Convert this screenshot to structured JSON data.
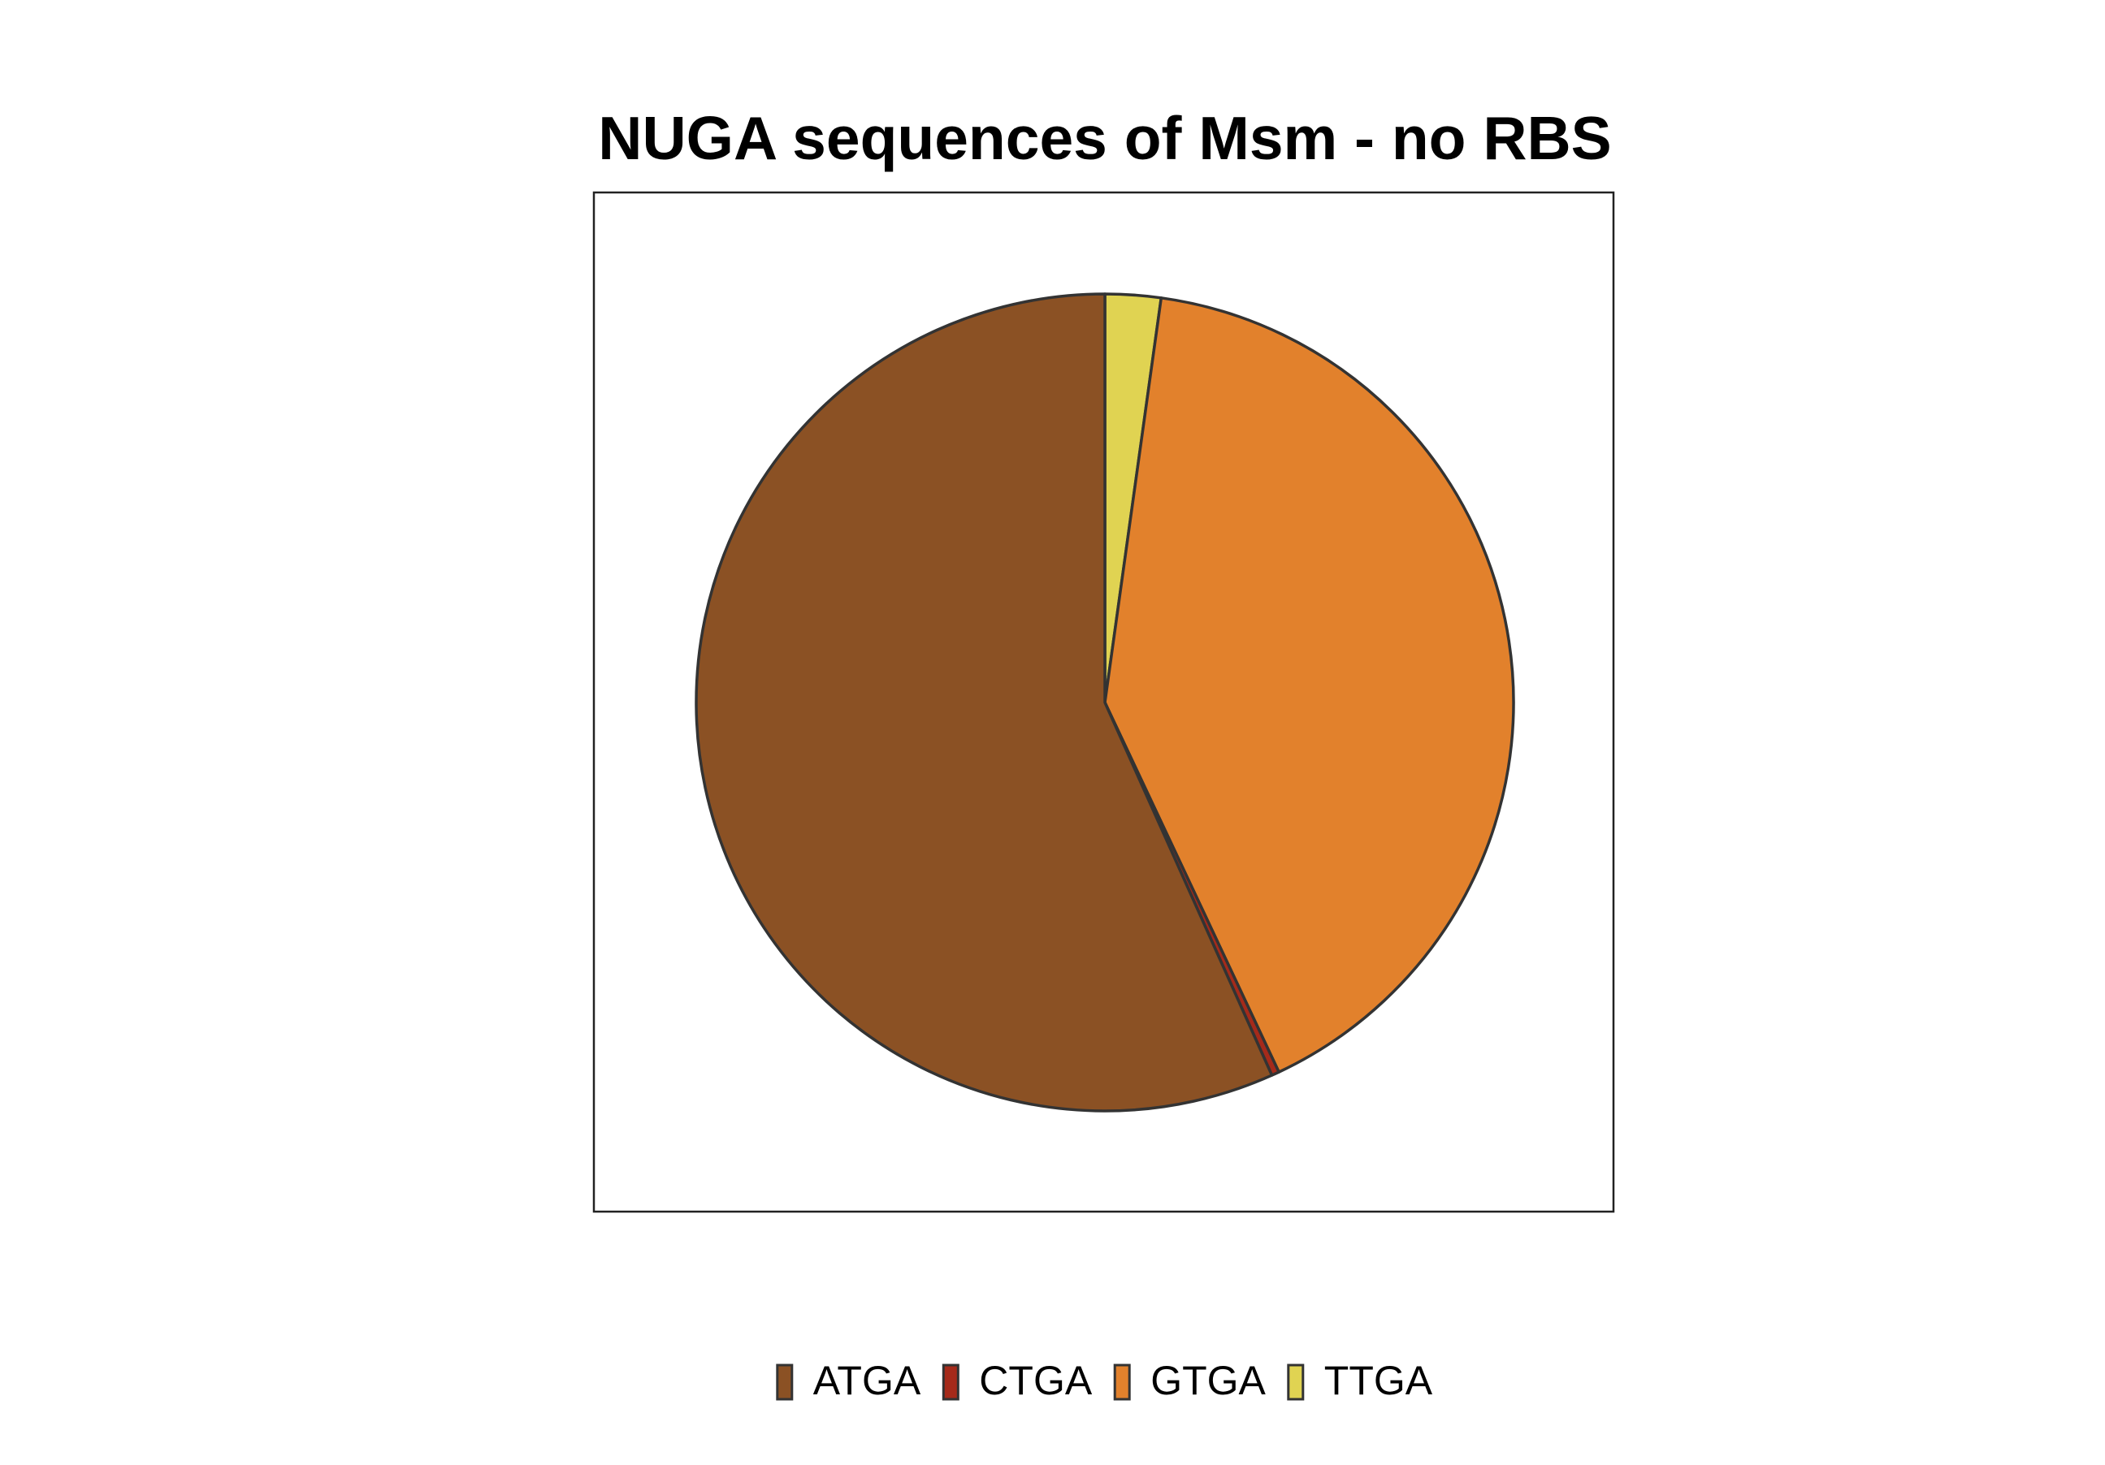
{
  "chart_data": {
    "type": "pie",
    "title": "NUGA sequences of Msm - no RBS",
    "start": "top",
    "direction": "clockwise",
    "slices": [
      {
        "label": "TTGA",
        "value": 2.2,
        "color": "#E0D352"
      },
      {
        "label": "GTGA",
        "value": 40.8,
        "color": "#E2812C"
      },
      {
        "label": "CTGA",
        "value": 0.3,
        "color": "#A52A1A"
      },
      {
        "label": "ATGA",
        "value": 56.7,
        "color": "#8B5124"
      }
    ],
    "legend": {
      "position": "bottom",
      "entries": [
        {
          "label": "ATGA",
          "color": "#8B5124"
        },
        {
          "label": "CTGA",
          "color": "#A52A1A"
        },
        {
          "label": "GTGA",
          "color": "#E2812C"
        },
        {
          "label": "TTGA",
          "color": "#E0D352"
        }
      ]
    },
    "stroke_color": "#333333"
  }
}
